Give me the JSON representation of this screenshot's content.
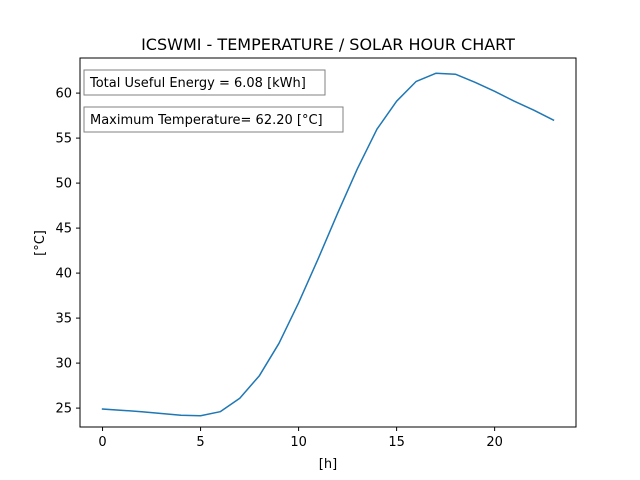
{
  "chart_data": {
    "type": "line",
    "title": "ICSWMI - TEMPERATURE / SOLAR HOUR CHART",
    "xlabel": "[h]",
    "ylabel": "[°C]",
    "xlim": [
      -1.15,
      24.15
    ],
    "ylim": [
      22.9,
      63.9
    ],
    "xticks": [
      0,
      5,
      10,
      15,
      20
    ],
    "yticks": [
      25,
      30,
      35,
      40,
      45,
      50,
      55,
      60
    ],
    "xtick_labels": [
      "0",
      "5",
      "10",
      "15",
      "20"
    ],
    "ytick_labels": [
      "25",
      "30",
      "35",
      "40",
      "45",
      "50",
      "55",
      "60"
    ],
    "grid": false,
    "series": [
      {
        "color": "#1f77b4",
        "x": [
          0,
          1,
          2,
          3,
          4,
          5,
          6,
          7,
          8,
          9,
          10,
          11,
          12,
          13,
          14,
          15,
          16,
          17,
          18,
          19,
          20,
          21,
          22,
          23
        ],
        "y": [
          24.9,
          24.75,
          24.6,
          24.4,
          24.2,
          24.15,
          24.6,
          26.1,
          28.6,
          32.2,
          36.7,
          41.6,
          46.7,
          51.6,
          56.0,
          59.1,
          61.3,
          62.2,
          62.1,
          61.2,
          60.2,
          59.1,
          58.1,
          57.0
        ]
      }
    ],
    "annotations": [
      {
        "text": "Total Useful Energy = 6.08 [kWh]"
      },
      {
        "text": "Maximum Temperature= 62.20 [°C]"
      }
    ]
  }
}
